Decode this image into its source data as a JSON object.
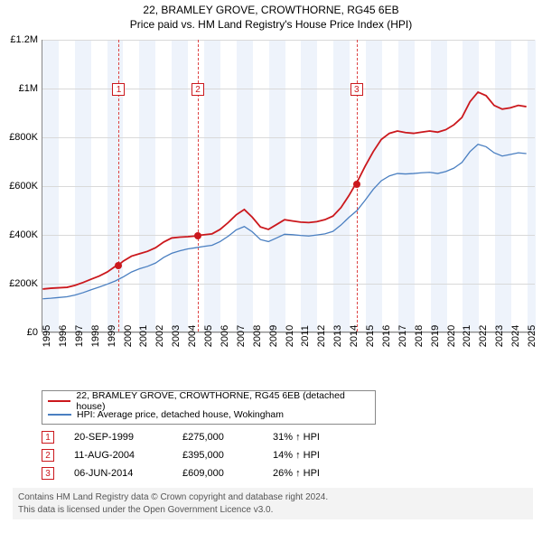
{
  "title": "22, BRAMLEY GROVE, CROWTHORNE, RG45 6EB",
  "subtitle": "Price paid vs. HM Land Registry's House Price Index (HPI)",
  "chart": {
    "type": "line",
    "background_color": "#ffffff",
    "grid_color": "#d9d9d9",
    "band_color": "#eef3fb",
    "axis_color": "#888888",
    "x_min": 1995,
    "x_max": 2025.5,
    "x_ticks": [
      1995,
      1996,
      1997,
      1998,
      1999,
      2000,
      2001,
      2002,
      2003,
      2004,
      2005,
      2006,
      2007,
      2008,
      2009,
      2010,
      2011,
      2012,
      2013,
      2014,
      2015,
      2016,
      2017,
      2018,
      2019,
      2020,
      2021,
      2022,
      2023,
      2024,
      2025
    ],
    "y_min": 0,
    "y_max": 1200000,
    "y_ticks": [
      {
        "v": 0,
        "label": "£0"
      },
      {
        "v": 200000,
        "label": "£200K"
      },
      {
        "v": 400000,
        "label": "£400K"
      },
      {
        "v": 600000,
        "label": "£600K"
      },
      {
        "v": 800000,
        "label": "£800K"
      },
      {
        "v": 1000000,
        "label": "£1M"
      },
      {
        "v": 1200000,
        "label": "£1.2M"
      }
    ],
    "bands_start": 1995,
    "series": [
      {
        "name": "22, BRAMLEY GROVE, CROWTHORNE, RG45 6EB (detached house)",
        "color": "#cb181d",
        "width": 1.8,
        "points": [
          [
            1995,
            175000
          ],
          [
            1995.5,
            178000
          ],
          [
            1996,
            180000
          ],
          [
            1996.5,
            182000
          ],
          [
            1997,
            190000
          ],
          [
            1997.5,
            202000
          ],
          [
            1998,
            215000
          ],
          [
            1998.5,
            228000
          ],
          [
            1999,
            245000
          ],
          [
            1999.5,
            268000
          ],
          [
            1999.72,
            275000
          ],
          [
            2000,
            290000
          ],
          [
            2000.5,
            310000
          ],
          [
            2001,
            320000
          ],
          [
            2001.5,
            330000
          ],
          [
            2002,
            345000
          ],
          [
            2002.5,
            368000
          ],
          [
            2003,
            385000
          ],
          [
            2003.5,
            388000
          ],
          [
            2004,
            390000
          ],
          [
            2004.5,
            393000
          ],
          [
            2004.61,
            395000
          ],
          [
            2005,
            398000
          ],
          [
            2005.5,
            402000
          ],
          [
            2006,
            420000
          ],
          [
            2006.5,
            448000
          ],
          [
            2007,
            480000
          ],
          [
            2007.5,
            502000
          ],
          [
            2008,
            470000
          ],
          [
            2008.5,
            430000
          ],
          [
            2009,
            420000
          ],
          [
            2009.5,
            440000
          ],
          [
            2010,
            460000
          ],
          [
            2010.5,
            455000
          ],
          [
            2011,
            450000
          ],
          [
            2011.5,
            448000
          ],
          [
            2012,
            452000
          ],
          [
            2012.5,
            460000
          ],
          [
            2013,
            475000
          ],
          [
            2013.5,
            510000
          ],
          [
            2014,
            560000
          ],
          [
            2014.43,
            609000
          ],
          [
            2014.5,
            615000
          ],
          [
            2015,
            680000
          ],
          [
            2015.5,
            740000
          ],
          [
            2016,
            790000
          ],
          [
            2016.5,
            815000
          ],
          [
            2017,
            825000
          ],
          [
            2017.5,
            818000
          ],
          [
            2018,
            815000
          ],
          [
            2018.5,
            820000
          ],
          [
            2019,
            825000
          ],
          [
            2019.5,
            820000
          ],
          [
            2020,
            830000
          ],
          [
            2020.5,
            850000
          ],
          [
            2021,
            880000
          ],
          [
            2021.5,
            945000
          ],
          [
            2022,
            985000
          ],
          [
            2022.5,
            970000
          ],
          [
            2023,
            930000
          ],
          [
            2023.5,
            915000
          ],
          [
            2024,
            920000
          ],
          [
            2024.5,
            930000
          ],
          [
            2025,
            925000
          ]
        ]
      },
      {
        "name": "HPI: Average price, detached house, Wokingham",
        "color": "#4a7fc1",
        "width": 1.3,
        "points": [
          [
            1995,
            135000
          ],
          [
            1995.5,
            137000
          ],
          [
            1996,
            140000
          ],
          [
            1996.5,
            143000
          ],
          [
            1997,
            150000
          ],
          [
            1997.5,
            160000
          ],
          [
            1998,
            172000
          ],
          [
            1998.5,
            183000
          ],
          [
            1999,
            195000
          ],
          [
            1999.5,
            208000
          ],
          [
            2000,
            225000
          ],
          [
            2000.5,
            245000
          ],
          [
            2001,
            258000
          ],
          [
            2001.5,
            268000
          ],
          [
            2002,
            282000
          ],
          [
            2002.5,
            305000
          ],
          [
            2003,
            322000
          ],
          [
            2003.5,
            332000
          ],
          [
            2004,
            340000
          ],
          [
            2004.5,
            345000
          ],
          [
            2005,
            350000
          ],
          [
            2005.5,
            355000
          ],
          [
            2006,
            370000
          ],
          [
            2006.5,
            392000
          ],
          [
            2007,
            418000
          ],
          [
            2007.5,
            432000
          ],
          [
            2008,
            410000
          ],
          [
            2008.5,
            378000
          ],
          [
            2009,
            370000
          ],
          [
            2009.5,
            385000
          ],
          [
            2010,
            400000
          ],
          [
            2010.5,
            398000
          ],
          [
            2011,
            395000
          ],
          [
            2011.5,
            393000
          ],
          [
            2012,
            397000
          ],
          [
            2012.5,
            402000
          ],
          [
            2013,
            412000
          ],
          [
            2013.5,
            438000
          ],
          [
            2014,
            470000
          ],
          [
            2014.5,
            498000
          ],
          [
            2015,
            540000
          ],
          [
            2015.5,
            585000
          ],
          [
            2016,
            620000
          ],
          [
            2016.5,
            640000
          ],
          [
            2017,
            650000
          ],
          [
            2017.5,
            648000
          ],
          [
            2018,
            650000
          ],
          [
            2018.5,
            653000
          ],
          [
            2019,
            655000
          ],
          [
            2019.5,
            650000
          ],
          [
            2020,
            658000
          ],
          [
            2020.5,
            672000
          ],
          [
            2021,
            695000
          ],
          [
            2021.5,
            740000
          ],
          [
            2022,
            770000
          ],
          [
            2022.5,
            760000
          ],
          [
            2023,
            735000
          ],
          [
            2023.5,
            722000
          ],
          [
            2024,
            728000
          ],
          [
            2024.5,
            735000
          ],
          [
            2025,
            732000
          ]
        ]
      }
    ],
    "markers": [
      {
        "n": "1",
        "x": 1999.72,
        "y": 275000,
        "box_top": 48
      },
      {
        "n": "2",
        "x": 2004.61,
        "y": 395000,
        "box_top": 48
      },
      {
        "n": "3",
        "x": 2014.43,
        "y": 609000,
        "box_top": 48
      }
    ]
  },
  "legend": [
    {
      "color": "#cb181d",
      "label": "22, BRAMLEY GROVE, CROWTHORNE, RG45 6EB (detached house)"
    },
    {
      "color": "#4a7fc1",
      "label": "HPI: Average price, detached house, Wokingham"
    }
  ],
  "transactions": [
    {
      "n": "1",
      "date": "20-SEP-1999",
      "price": "£275,000",
      "pct": "31% ↑ HPI"
    },
    {
      "n": "2",
      "date": "11-AUG-2004",
      "price": "£395,000",
      "pct": "14% ↑ HPI"
    },
    {
      "n": "3",
      "date": "06-JUN-2014",
      "price": "£609,000",
      "pct": "26% ↑ HPI"
    }
  ],
  "footer": {
    "line1": "Contains HM Land Registry data © Crown copyright and database right 2024.",
    "line2": "This data is licensed under the Open Government Licence v3.0."
  }
}
